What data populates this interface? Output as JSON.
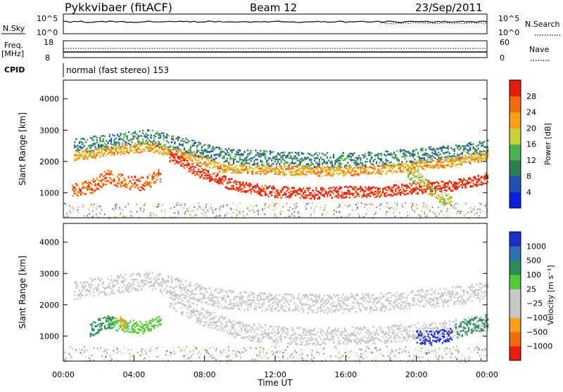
{
  "header": {
    "station": "Pykkvibaer (fitACF)",
    "beam": "Beam 12",
    "date": "23/Sep/2011"
  },
  "top_panels": {
    "nsky_label": "N.Sky",
    "nsky_ticks": [
      "10^5",
      "10^0"
    ],
    "nsearch_label": "N.Search",
    "nsearch_ticks": [
      "10^5",
      "10^0"
    ],
    "freq_label_1": "Freq.",
    "freq_label_2": "[MHz]",
    "freq_ticks": [
      "18",
      "8"
    ],
    "nave_label": "Nave",
    "nave_ticks": [
      "60",
      "0"
    ],
    "cpid_label": "CPID",
    "cpid_text": "normal (fast stereo) 153"
  },
  "colors": {
    "power_scale": [
      "#0a1fe0",
      "#234fb0",
      "#2e7d55",
      "#4db050",
      "#c8d23a",
      "#f5a015",
      "#f26a10",
      "#e61d0e"
    ],
    "velocity_scale": [
      "#e61d0e",
      "#f26a10",
      "#f5a015",
      "#c8c8c8",
      "#c8c8c8",
      "#55c83c",
      "#2e8c5a",
      "#2f6fb4",
      "#1c2fc8"
    ],
    "gray": "#c8c8c8"
  },
  "chart_data": [
    {
      "type": "heatmap",
      "name": "power",
      "ylabel": "Slant Range [km]",
      "xlabel": "",
      "xlim": [
        0,
        24
      ],
      "ylim": [
        200,
        4600
      ],
      "yticks": [
        "4000",
        "3000",
        "2000",
        "1000"
      ],
      "colorbar_label": "Power [dB]",
      "colorbar_ticks": [
        "28",
        "24",
        "20",
        "16",
        "12",
        "8",
        "4"
      ],
      "bands": [
        {
          "t": [
            0.6,
            4.8,
            7.0,
            9.0,
            12.0,
            15.0,
            18.0,
            20.0,
            22.0,
            24.0
          ],
          "r": [
            2500,
            2800,
            2500,
            2200,
            2100,
            2050,
            2100,
            2200,
            2300,
            2450
          ],
          "level": 2,
          "width": 250
        },
        {
          "t": [
            0.6,
            4.8,
            7.0,
            9.0,
            12.0,
            15.0,
            18.0,
            20.0,
            22.0,
            24.0
          ],
          "r": [
            2200,
            2500,
            2200,
            1800,
            1750,
            1700,
            1750,
            1900,
            2000,
            2200
          ],
          "level": 5,
          "width": 150
        },
        {
          "t": [
            0.5,
            1.5,
            2.5,
            3.5,
            4.5,
            5.5
          ],
          "r": [
            1100,
            1200,
            1550,
            1350,
            1300,
            1600
          ],
          "level": 6,
          "width": 220
        },
        {
          "t": [
            6.0,
            8.0,
            10.0,
            12.0,
            14.0,
            16.0,
            18.0,
            19.5,
            21.0,
            22.5,
            24.0
          ],
          "r": [
            2200,
            1600,
            1200,
            1050,
            1000,
            1050,
            1050,
            1150,
            1200,
            1300,
            1500
          ],
          "level": 7,
          "width": 180
        },
        {
          "t": [
            19.5,
            20.5,
            21.2,
            22.0
          ],
          "r": [
            1700,
            1300,
            900,
            800
          ],
          "level": 4,
          "width": 220
        }
      ]
    },
    {
      "type": "heatmap",
      "name": "velocity",
      "ylabel": "Slant Range [km]",
      "xlabel": "Time UT",
      "xlim": [
        0,
        24
      ],
      "ylim": [
        200,
        4600
      ],
      "yticks": [
        "4000",
        "3000",
        "2000",
        "1000"
      ],
      "xticks": [
        "00:00",
        "04:00",
        "08:00",
        "12:00",
        "16:00",
        "20:00",
        "00:00"
      ],
      "colorbar_label": "Velocity [m s⁻¹]",
      "colorbar_ticks": [
        "1000",
        "500",
        "100",
        "25",
        "−25",
        "−100",
        "−500",
        "−1000"
      ],
      "bands": [
        {
          "t": [
            0.6,
            4.8,
            7.0,
            9.0,
            12.0,
            15.0,
            18.0,
            20.0,
            22.0,
            24.0
          ],
          "r": [
            2500,
            2800,
            2500,
            2200,
            2100,
            2050,
            2100,
            2200,
            2300,
            2450
          ],
          "level": 3,
          "width": 300
        },
        {
          "t": [
            6.0,
            8.0,
            10.0,
            12.0,
            14.0,
            16.0,
            18.0,
            19.5,
            21.0,
            22.5,
            24.0
          ],
          "r": [
            2200,
            1600,
            1200,
            1050,
            1000,
            1050,
            1050,
            1150,
            1200,
            1300,
            1500
          ],
          "level": 3,
          "width": 280
        },
        {
          "t": [
            2.5,
            3.5,
            4.5,
            5.5
          ],
          "r": [
            1450,
            1350,
            1300,
            1500
          ],
          "level": 5,
          "width": 200
        },
        {
          "t": [
            1.5,
            2.2,
            2.8
          ],
          "r": [
            1200,
            1450,
            1500
          ],
          "level": 6,
          "width": 220
        },
        {
          "t": [
            3.2,
            3.5
          ],
          "r": [
            1500,
            1350
          ],
          "level": 2,
          "width": 160
        },
        {
          "t": [
            20.0,
            21.0,
            22.0
          ],
          "r": [
            1000,
            950,
            1100
          ],
          "level": 8,
          "width": 220
        },
        {
          "t": [
            22.2,
            23.0,
            24.0
          ],
          "r": [
            1200,
            1350,
            1450
          ],
          "level": 6,
          "width": 260
        }
      ]
    }
  ]
}
